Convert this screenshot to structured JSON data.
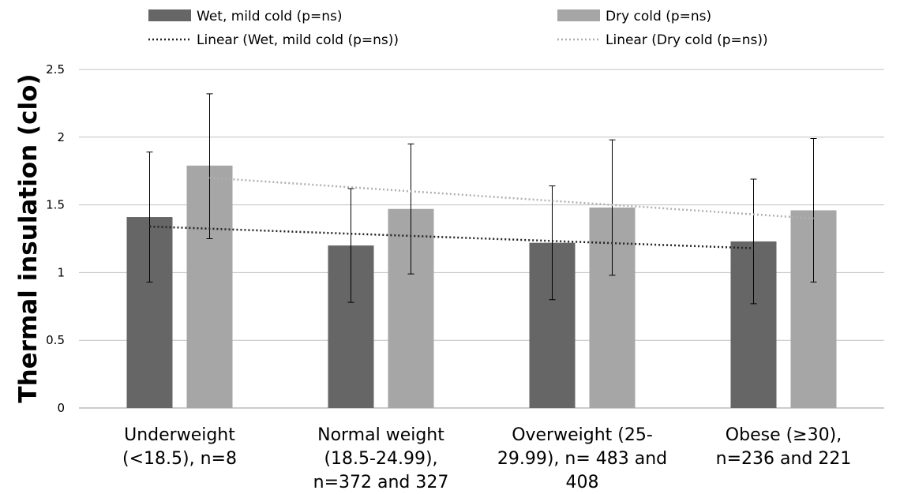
{
  "chart_data": {
    "type": "bar",
    "title": "",
    "xlabel": "",
    "ylabel": "Thermal insulation (clo)",
    "ylim": [
      0,
      2.5
    ],
    "yticks": [
      "0",
      "0.5",
      "1",
      "1.5",
      "2",
      "2.5"
    ],
    "ytick_values": [
      0,
      0.5,
      1,
      1.5,
      2,
      2.5
    ],
    "grid": "horizontal",
    "legend_position": "top",
    "categories": [
      [
        "Underweight",
        "(<18.5), n=8"
      ],
      [
        "Normal weight",
        "(18.5-24.99),",
        "n=372 and 327"
      ],
      [
        "Overweight (25-",
        "29.99), n= 483 and",
        "408"
      ],
      [
        "Obese (≥30),",
        "n=236 and 221"
      ]
    ],
    "series": [
      {
        "name": "Wet, mild cold (p=ns)",
        "color": "#666666",
        "values": [
          1.41,
          1.2,
          1.22,
          1.23
        ],
        "error_low": [
          0.93,
          0.78,
          0.8,
          0.77
        ],
        "error_high": [
          1.89,
          1.62,
          1.64,
          1.69
        ]
      },
      {
        "name": "Dry cold (p=ns)",
        "color": "#a6a6a6",
        "values": [
          1.79,
          1.47,
          1.48,
          1.46
        ],
        "error_low": [
          1.25,
          0.99,
          0.98,
          0.93
        ],
        "error_high": [
          2.32,
          1.95,
          1.98,
          1.99
        ]
      }
    ],
    "trendlines": [
      {
        "name": "Linear (Wet, mild cold (p=ns))",
        "series": 0,
        "color": "#222222",
        "start": 1.34,
        "end": 1.18
      },
      {
        "name": "Linear (Dry cold (p=ns))",
        "series": 1,
        "color": "#b0b0b0",
        "start": 1.7,
        "end": 1.4
      }
    ]
  }
}
